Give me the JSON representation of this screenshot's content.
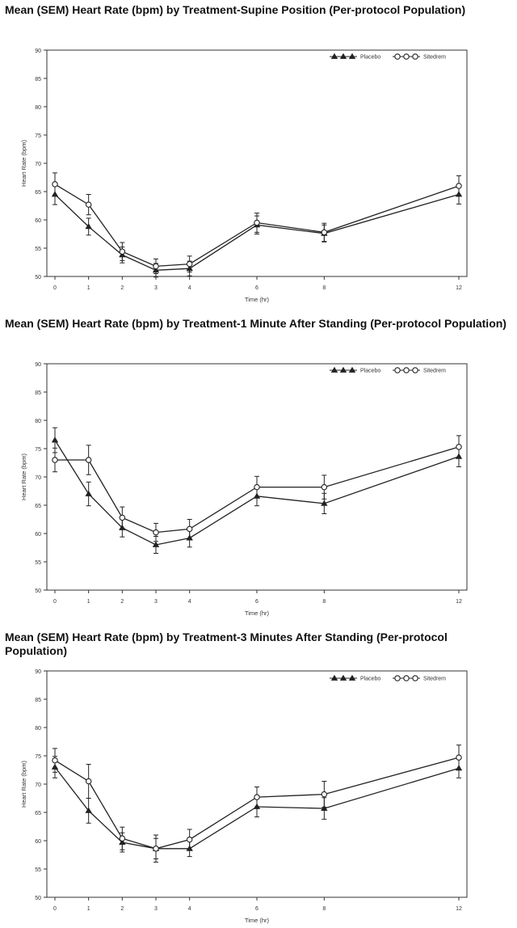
{
  "chart_data": [
    {
      "type": "line",
      "title": "Mean (SEM) Heart Rate (bpm) by Treatment-Supine Position (Per-protocol Population)",
      "xlabel": "Time (hr)",
      "ylabel": "Heart Rate (bpm)",
      "x": [
        0,
        1,
        2,
        3,
        4,
        6,
        8,
        12
      ],
      "x_ticks": [
        "0",
        "1",
        "2",
        "3",
        "4",
        "6",
        "8",
        "12"
      ],
      "ylim": [
        50,
        90
      ],
      "y_ticks": [
        "50",
        "55",
        "60",
        "65",
        "70",
        "75",
        "80",
        "85",
        "90"
      ],
      "legend_position": "top-right",
      "series": [
        {
          "name": "Placebo",
          "marker": "triangle",
          "values": [
            64.5,
            58.8,
            53.8,
            51.1,
            51.4,
            59.1,
            57.6,
            64.5
          ],
          "sem": [
            1.8,
            1.5,
            1.4,
            1.2,
            1.3,
            1.6,
            1.5,
            1.7
          ]
        },
        {
          "name": "Sitedrem",
          "marker": "circle",
          "values": [
            66.3,
            62.7,
            54.4,
            51.8,
            52.2,
            59.5,
            57.8,
            66.0
          ],
          "sem": [
            2.0,
            1.8,
            1.6,
            1.3,
            1.4,
            1.7,
            1.6,
            1.8
          ]
        }
      ]
    },
    {
      "type": "line",
      "title": "Mean (SEM) Heart Rate (bpm) by Treatment-1 Minute After Standing (Per-protocol Population)",
      "xlabel": "Time (hr)",
      "ylabel": "Heart Rate (bpm)",
      "x": [
        0,
        1,
        2,
        3,
        4,
        6,
        8,
        12
      ],
      "x_ticks": [
        "0",
        "1",
        "2",
        "3",
        "4",
        "6",
        "8",
        "12"
      ],
      "ylim": [
        50,
        90
      ],
      "y_ticks": [
        "50",
        "55",
        "60",
        "65",
        "70",
        "75",
        "80",
        "85",
        "90"
      ],
      "legend_position": "top-right",
      "series": [
        {
          "name": "Placebo",
          "marker": "triangle",
          "values": [
            76.5,
            67.0,
            61.0,
            58.0,
            59.2,
            66.6,
            65.3,
            73.6
          ],
          "sem": [
            2.2,
            2.1,
            1.6,
            1.5,
            1.6,
            1.7,
            1.8,
            1.8
          ]
        },
        {
          "name": "Sitedrem",
          "marker": "circle",
          "values": [
            73.0,
            73.0,
            62.8,
            60.2,
            60.8,
            68.2,
            68.2,
            75.3
          ],
          "sem": [
            2.1,
            2.6,
            1.9,
            1.6,
            1.7,
            1.9,
            2.1,
            2.0
          ]
        }
      ]
    },
    {
      "type": "line",
      "title": "Mean (SEM) Heart Rate (bpm) by Treatment-3 Minutes After Standing (Per-protocol Population)",
      "xlabel": "Time (hr)",
      "ylabel": "Heart Rate (bpm)",
      "x": [
        0,
        1,
        2,
        3,
        4,
        6,
        8,
        12
      ],
      "x_ticks": [
        "0",
        "1",
        "2",
        "3",
        "4",
        "6",
        "8",
        "12"
      ],
      "ylim": [
        50,
        90
      ],
      "y_ticks": [
        "50",
        "55",
        "60",
        "65",
        "70",
        "75",
        "80",
        "85",
        "90"
      ],
      "legend_position": "top-right",
      "series": [
        {
          "name": "Placebo",
          "marker": "triangle",
          "values": [
            73.0,
            65.3,
            59.7,
            58.6,
            58.6,
            66.0,
            65.7,
            72.8
          ],
          "sem": [
            1.9,
            2.2,
            1.7,
            1.8,
            1.4,
            1.8,
            1.9,
            1.7
          ]
        },
        {
          "name": "Sitedrem",
          "marker": "circle",
          "values": [
            74.2,
            70.5,
            60.4,
            58.6,
            60.2,
            67.7,
            68.2,
            74.7
          ],
          "sem": [
            2.1,
            3.0,
            2.0,
            2.4,
            1.8,
            1.8,
            2.3,
            2.2
          ]
        }
      ]
    }
  ]
}
